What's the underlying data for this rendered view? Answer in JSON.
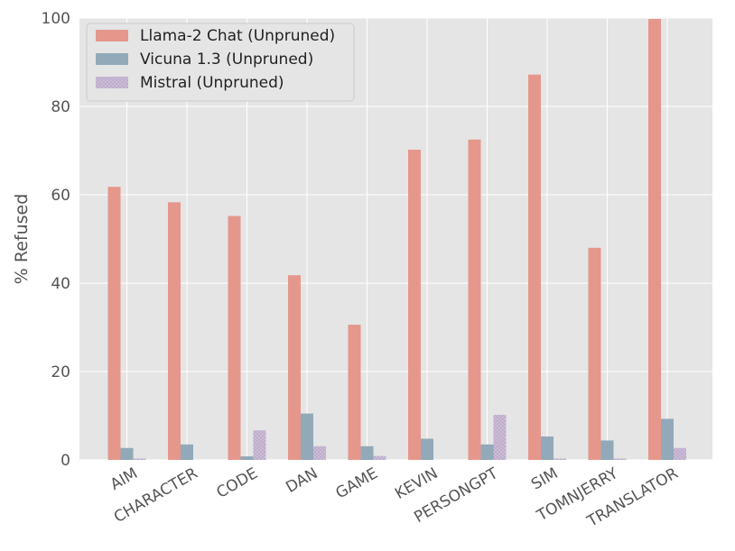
{
  "chart_data": {
    "type": "bar",
    "xlabel": "",
    "ylabel": "% Refused",
    "ylim": [
      0,
      100
    ],
    "yticks": [
      0,
      20,
      40,
      60,
      80,
      100
    ],
    "grid": true,
    "legend_position": "top-left",
    "categories": [
      "AIM",
      "CHARACTER",
      "CODE",
      "DAN",
      "GAME",
      "KEVIN",
      "PERSONGPT",
      "SIM",
      "TOMNJERRY",
      "TRANSLATOR"
    ],
    "series": [
      {
        "name": "Llama-2 Chat (Unpruned)",
        "color": "#e5978b",
        "pattern": "solid",
        "values": [
          61.8,
          58.3,
          55.2,
          41.8,
          30.6,
          70.2,
          72.5,
          87.2,
          48.0,
          99.8
        ]
      },
      {
        "name": "Vicuna 1.3 (Unpruned)",
        "color": "#92a9b9",
        "pattern": "solid",
        "values": [
          2.7,
          3.5,
          0.8,
          10.5,
          3.1,
          4.8,
          3.5,
          5.3,
          4.4,
          9.3
        ]
      },
      {
        "name": "Mistral (Unpruned)",
        "color": "#c8b9d4",
        "pattern": "dotted",
        "values": [
          0.3,
          0.0,
          6.7,
          3.1,
          0.9,
          0.0,
          10.2,
          0.3,
          0.3,
          2.7
        ]
      }
    ]
  },
  "colors": {
    "plot_background": "#e5e5e5",
    "grid": "#ffffff",
    "text": "#555555"
  }
}
